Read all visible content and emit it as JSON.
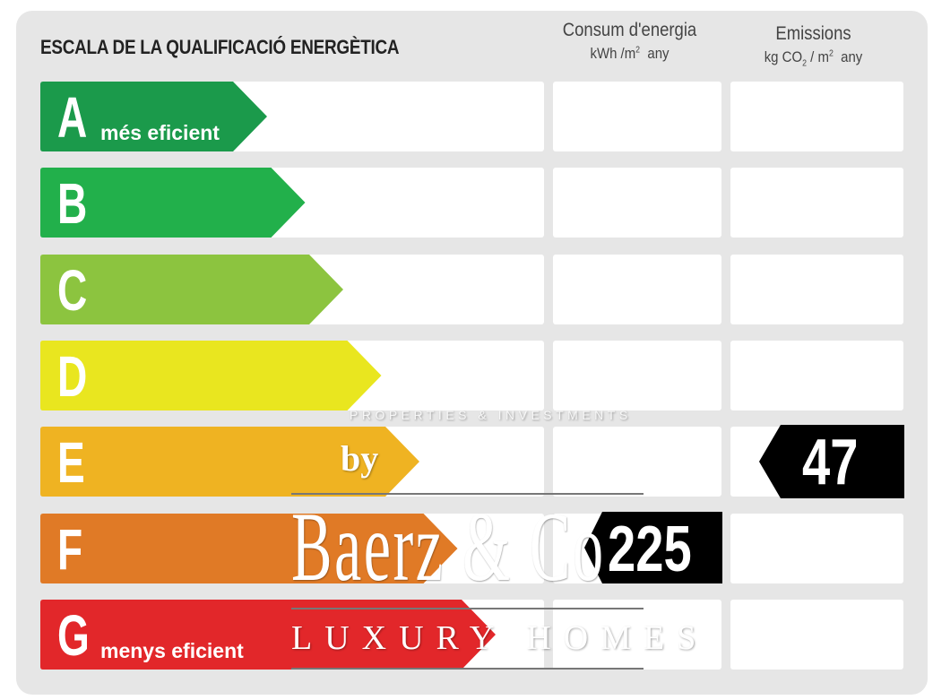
{
  "title": "ESCALA DE LA QUALIFICACIÓ ENERGÈTICA",
  "columns": {
    "energy": {
      "label": "Consum d'energia",
      "unit_pre": "kWh /m",
      "unit_sup": "2",
      "unit_post": "any"
    },
    "emissions": {
      "label": "Emissions",
      "unit_pre": "kg CO",
      "unit_sub": "2",
      "unit_mid": " / m",
      "unit_sup": "2",
      "unit_post": "any"
    }
  },
  "ratings": [
    {
      "letter": "A",
      "caption": "més eficient",
      "color": "#1b9a4b"
    },
    {
      "letter": "B",
      "caption": "",
      "color": "#22b04b"
    },
    {
      "letter": "C",
      "caption": "",
      "color": "#8cc43f"
    },
    {
      "letter": "D",
      "caption": "",
      "color": "#e9e61f"
    },
    {
      "letter": "E",
      "caption": "",
      "color": "#efb322"
    },
    {
      "letter": "F",
      "caption": "",
      "color": "#e07a26"
    },
    {
      "letter": "G",
      "caption": "menys eficient",
      "color": "#e2272a"
    }
  ],
  "energy_value": {
    "value": "225",
    "rating": "F"
  },
  "emissions_value": {
    "value": "47",
    "rating": "E"
  },
  "watermark": {
    "tagline": "PROPERTIES & INVESTMENTS",
    "by": "by",
    "brand": "Baerz & Co",
    "sub": "LUXURY HOMES"
  }
}
